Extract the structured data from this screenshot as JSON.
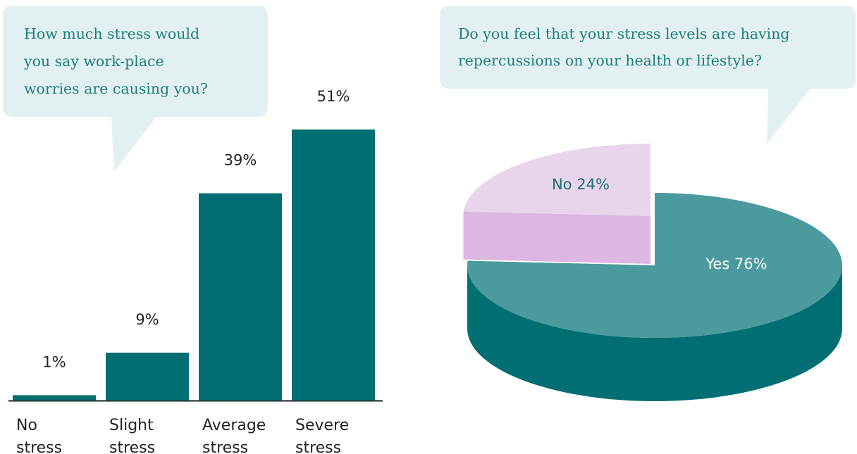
{
  "chart_data": [
    {
      "type": "bar",
      "title": "How much stress would you say work-place worries are causing you?",
      "title_lines": [
        "How much stress would",
        "you say work-place",
        "worries are causing you?"
      ],
      "categories": [
        "No stress",
        "Slight stress",
        "Average stress",
        "Severe stress"
      ],
      "category_lines": [
        [
          "No",
          "stress"
        ],
        [
          "Slight",
          "stress"
        ],
        [
          "Average",
          "stress"
        ],
        [
          "Severe",
          "stress"
        ]
      ],
      "values": [
        1,
        9,
        39,
        51
      ],
      "value_labels": [
        "1%",
        "9%",
        "39%",
        "51%"
      ],
      "unit": "%",
      "ylim": [
        0,
        51
      ],
      "grid": false,
      "color": "#006e72"
    },
    {
      "type": "pie",
      "title": "Do you feel that your stress levels are having repercussions on your health or lifestyle?",
      "title_lines": [
        "Do you feel that your stress levels are having",
        "repercussions on your health or lifestyle?"
      ],
      "slices": [
        {
          "label": "Yes",
          "value": 76,
          "display": "Yes 76%",
          "top_color": "#4b9a9e",
          "side_color": "#006e72",
          "text_color": "#ffffff"
        },
        {
          "label": "No",
          "value": 24,
          "display": "No 24%",
          "top_color": "#e8d5ec",
          "side_color": "#dbb7e1",
          "text_color": "#1f6f72",
          "exploded": true
        }
      ],
      "style": "3d"
    }
  ],
  "colors": {
    "bubble_fill": "#e3f0f1",
    "question_text": "#1f7f7c",
    "axis_line": "#222222"
  }
}
